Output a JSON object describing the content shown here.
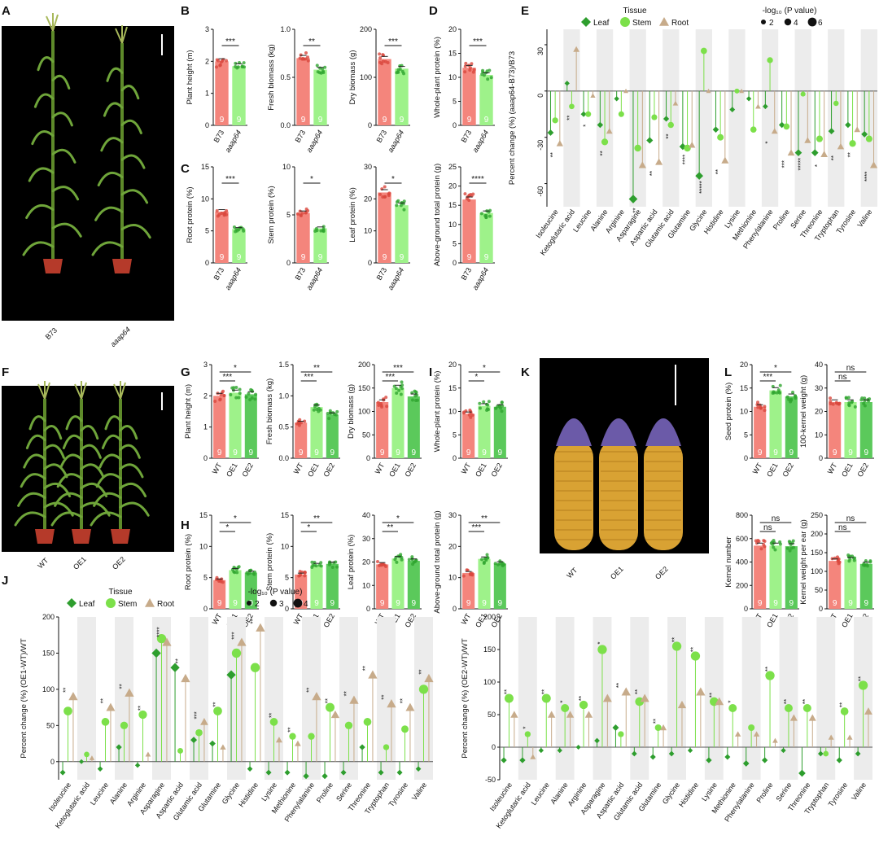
{
  "panel_letters": [
    "A",
    "B",
    "C",
    "D",
    "E",
    "F",
    "G",
    "H",
    "I",
    "J",
    "K",
    "L"
  ],
  "photo_labels": {
    "A": [
      "B73",
      "aaap64"
    ],
    "F": [
      "WT",
      "OE1",
      "OE2"
    ],
    "K": [
      "WT",
      "OE1",
      "OE2"
    ]
  },
  "colors": {
    "red": "#f4857c",
    "light_green": "#9ef28a",
    "green": "#5bc95b",
    "leaf": "#2e9e2e",
    "stem": "#7ce04a",
    "root": "#c7ab8a"
  },
  "legend_E": {
    "tissue_title": "Tissue",
    "items": [
      "Leaf",
      "Stem",
      "Root"
    ],
    "p_title": "-log₁₀ (P value)",
    "p_values": [
      "2",
      "4",
      "6"
    ]
  },
  "legend_J": {
    "tissue_title": "Tissue",
    "items": [
      "Leaf",
      "Stem",
      "Root"
    ],
    "p_title": "-log₁₀ (P value)",
    "p_values": [
      "2",
      "3",
      "4"
    ]
  },
  "chart_data": [
    {
      "panel": "B",
      "type": "bar",
      "ylabel": "Plant height (m)",
      "ylim": [
        0,
        3
      ],
      "ticks": [
        "0",
        "1",
        "2",
        "3"
      ],
      "categories": [
        "B73",
        "aaap64"
      ],
      "values": [
        2.0,
        1.85
      ],
      "n": [
        "9",
        "9"
      ],
      "sig": [
        {
          "from": 0,
          "to": 1,
          "label": "***"
        }
      ]
    },
    {
      "panel": "B",
      "type": "bar",
      "ylabel": "Fresh biomass (kg)",
      "ylim": [
        0,
        1.0
      ],
      "ticks": [
        "0.0",
        "0.5",
        "1.0"
      ],
      "categories": [
        "B73",
        "aaap64"
      ],
      "values": [
        0.7,
        0.58
      ],
      "n": [
        "9",
        "9"
      ],
      "sig": [
        {
          "from": 0,
          "to": 1,
          "label": "**"
        }
      ]
    },
    {
      "panel": "B",
      "type": "bar",
      "ylabel": "Dry biomass (g)",
      "ylim": [
        0,
        200
      ],
      "ticks": [
        "0",
        "100",
        "200"
      ],
      "categories": [
        "B73",
        "aaap64"
      ],
      "values": [
        138,
        118
      ],
      "n": [
        "9",
        "9"
      ],
      "sig": [
        {
          "from": 0,
          "to": 1,
          "label": "***"
        }
      ]
    },
    {
      "panel": "C",
      "type": "bar",
      "ylabel": "Root protein (%)",
      "ylim": [
        0,
        15
      ],
      "ticks": [
        "0",
        "5",
        "10",
        "15"
      ],
      "categories": [
        "B73",
        "aaap64"
      ],
      "values": [
        8.0,
        5.3
      ],
      "n": [
        "9",
        "9"
      ],
      "sig": [
        {
          "from": 0,
          "to": 1,
          "label": "***"
        }
      ]
    },
    {
      "panel": "C",
      "type": "bar",
      "ylabel": "Stem protein (%)",
      "ylim": [
        0,
        10
      ],
      "ticks": [
        "0",
        "5",
        "10"
      ],
      "categories": [
        "B73",
        "aaap64"
      ],
      "values": [
        5.2,
        3.6
      ],
      "n": [
        "9",
        "9"
      ],
      "sig": [
        {
          "from": 0,
          "to": 1,
          "label": "*"
        }
      ]
    },
    {
      "panel": "C",
      "type": "bar",
      "ylabel": "Leaf protein (%)",
      "ylim": [
        0,
        30
      ],
      "ticks": [
        "0",
        "10",
        "20",
        "30"
      ],
      "categories": [
        "B73",
        "aaap64"
      ],
      "values": [
        22,
        18
      ],
      "n": [
        "9",
        "9"
      ],
      "sig": [
        {
          "from": 0,
          "to": 1,
          "label": "*"
        }
      ]
    },
    {
      "panel": "D",
      "type": "bar",
      "ylabel": "Whole-plant protein (%)",
      "ylim": [
        0,
        20
      ],
      "ticks": [
        "0",
        "5",
        "10",
        "15",
        "20"
      ],
      "categories": [
        "B73",
        "aaap64"
      ],
      "values": [
        12,
        10.5
      ],
      "n": [
        "9",
        "9"
      ],
      "sig": [
        {
          "from": 0,
          "to": 1,
          "label": "***"
        }
      ]
    },
    {
      "panel": "D",
      "type": "bar",
      "ylabel": "Above-ground total protein (g)",
      "ylim": [
        0,
        25
      ],
      "ticks": [
        "0",
        "5",
        "10",
        "15",
        "20",
        "25"
      ],
      "categories": [
        "B73",
        "aaap64"
      ],
      "values": [
        16.5,
        13
      ],
      "n": [
        "9",
        "9"
      ],
      "sig": [
        {
          "from": 0,
          "to": 1,
          "label": "****"
        }
      ]
    },
    {
      "panel": "G",
      "type": "bar",
      "ylabel": "Plant height (m)",
      "ylim": [
        0,
        3
      ],
      "ticks": [
        "0",
        "1",
        "2",
        "3"
      ],
      "categories": [
        "WT",
        "OE1",
        "OE2"
      ],
      "values": [
        2.0,
        2.1,
        2.05
      ],
      "n": [
        "9",
        "9",
        "9"
      ],
      "sig": [
        {
          "from": 0,
          "to": 1,
          "label": "***"
        },
        {
          "from": 0,
          "to": 2,
          "label": "*"
        }
      ]
    },
    {
      "panel": "G",
      "type": "bar",
      "ylabel": "Fresh biomass (kg)",
      "ylim": [
        0,
        1.5
      ],
      "ticks": [
        "0.0",
        "0.5",
        "1.0",
        "1.5"
      ],
      "categories": [
        "WT",
        "OE1",
        "OE2"
      ],
      "values": [
        0.57,
        0.82,
        0.7
      ],
      "n": [
        "9",
        "9",
        "9"
      ],
      "sig": [
        {
          "from": 0,
          "to": 1,
          "label": "***"
        },
        {
          "from": 0,
          "to": 2,
          "label": "**"
        }
      ]
    },
    {
      "panel": "G",
      "type": "bar",
      "ylabel": "Dry biomass (g)",
      "ylim": [
        0,
        200
      ],
      "ticks": [
        "0",
        "50",
        "100",
        "150",
        "200"
      ],
      "categories": [
        "WT",
        "OE1",
        "OE2"
      ],
      "values": [
        120,
        150,
        132
      ],
      "n": [
        "9",
        "9",
        "9"
      ],
      "sig": [
        {
          "from": 0,
          "to": 1,
          "label": "***"
        },
        {
          "from": 0,
          "to": 2,
          "label": "***"
        }
      ]
    },
    {
      "panel": "H",
      "type": "bar",
      "ylabel": "Root protein (%)",
      "ylim": [
        0,
        15
      ],
      "ticks": [
        "0",
        "5",
        "10",
        "15"
      ],
      "categories": [
        "WT",
        "OE1",
        "OE2"
      ],
      "values": [
        4.6,
        6.2,
        5.8
      ],
      "n": [
        "9",
        "9",
        "9"
      ],
      "sig": [
        {
          "from": 0,
          "to": 1,
          "label": "*"
        },
        {
          "from": 0,
          "to": 2,
          "label": "*"
        }
      ]
    },
    {
      "panel": "H",
      "type": "bar",
      "ylabel": "Stem protein (%)",
      "ylim": [
        0,
        15
      ],
      "ticks": [
        "0",
        "5",
        "10",
        "15"
      ],
      "categories": [
        "WT",
        "OE1",
        "OE2"
      ],
      "values": [
        5.5,
        7.0,
        7.2
      ],
      "n": [
        "9",
        "9",
        "9"
      ],
      "sig": [
        {
          "from": 0,
          "to": 1,
          "label": "*"
        },
        {
          "from": 0,
          "to": 2,
          "label": "**"
        }
      ]
    },
    {
      "panel": "H",
      "type": "bar",
      "ylabel": "Leaf protein (%)",
      "ylim": [
        0,
        40
      ],
      "ticks": [
        "0",
        "10",
        "20",
        "30",
        "40"
      ],
      "categories": [
        "WT",
        "OE1",
        "OE2"
      ],
      "values": [
        19,
        21.5,
        20.5
      ],
      "n": [
        "9",
        "9",
        "9"
      ],
      "sig": [
        {
          "from": 0,
          "to": 1,
          "label": "**"
        },
        {
          "from": 0,
          "to": 2,
          "label": "*"
        }
      ]
    },
    {
      "panel": "I",
      "type": "bar",
      "ylabel": "Whole-plant protein (%)",
      "ylim": [
        0,
        20
      ],
      "ticks": [
        "0",
        "5",
        "10",
        "15",
        "20"
      ],
      "categories": [
        "WT",
        "OE1",
        "OE2"
      ],
      "values": [
        9.5,
        11.2,
        11
      ],
      "n": [
        "9",
        "9",
        "9"
      ],
      "sig": [
        {
          "from": 0,
          "to": 1,
          "label": "*"
        },
        {
          "from": 0,
          "to": 2,
          "label": "*"
        }
      ]
    },
    {
      "panel": "I",
      "type": "bar",
      "ylabel": "Above-ground total protein (g)",
      "ylim": [
        0,
        30
      ],
      "ticks": [
        "0",
        "10",
        "20",
        "30"
      ],
      "categories": [
        "WT",
        "OE1",
        "OE2"
      ],
      "values": [
        11.5,
        16,
        14.5
      ],
      "n": [
        "9",
        "9",
        "9"
      ],
      "sig": [
        {
          "from": 0,
          "to": 1,
          "label": "***"
        },
        {
          "from": 0,
          "to": 2,
          "label": "**"
        }
      ]
    },
    {
      "panel": "L",
      "type": "bar",
      "ylabel": "Seed protein (%)",
      "ylim": [
        0,
        20
      ],
      "ticks": [
        "0",
        "5",
        "10",
        "15",
        "20"
      ],
      "categories": [
        "WT",
        "OE1",
        "OE2"
      ],
      "values": [
        11,
        14.5,
        13.2
      ],
      "n": [
        "9",
        "9",
        "9"
      ],
      "sig": [
        {
          "from": 0,
          "to": 1,
          "label": "***"
        },
        {
          "from": 0,
          "to": 2,
          "label": "*"
        }
      ]
    },
    {
      "panel": "L",
      "type": "bar",
      "ylabel": "100-kernel weight (g)",
      "ylim": [
        0,
        40
      ],
      "ticks": [
        "0",
        "10",
        "20",
        "30",
        "40"
      ],
      "categories": [
        "WT",
        "OE1",
        "OE2"
      ],
      "values": [
        24,
        24,
        24
      ],
      "n": [
        "9",
        "9",
        "9"
      ],
      "sig": [
        {
          "from": 0,
          "to": 1,
          "label": "ns"
        },
        {
          "from": 0,
          "to": 2,
          "label": "ns"
        }
      ]
    },
    {
      "panel": "L",
      "type": "bar",
      "ylabel": "Kernel number",
      "ylim": [
        0,
        800
      ],
      "ticks": [
        "0",
        "200",
        "400",
        "600",
        "800"
      ],
      "categories": [
        "WT",
        "OE1",
        "OE2"
      ],
      "values": [
        540,
        540,
        535
      ],
      "n": [
        "9",
        "9",
        "9"
      ],
      "sig": [
        {
          "from": 0,
          "to": 1,
          "label": "ns"
        },
        {
          "from": 0,
          "to": 2,
          "label": "ns"
        }
      ]
    },
    {
      "panel": "L",
      "type": "bar",
      "ylabel": "Kernel weight per ear (g)",
      "ylim": [
        0,
        250
      ],
      "ticks": [
        "0",
        "50",
        "100",
        "150",
        "200",
        "250"
      ],
      "categories": [
        "WT",
        "OE1",
        "OE2"
      ],
      "values": [
        128,
        132,
        120
      ],
      "n": [
        "9",
        "9",
        "9"
      ],
      "sig": [
        {
          "from": 0,
          "to": 1,
          "label": "ns"
        },
        {
          "from": 0,
          "to": 2,
          "label": "ns"
        }
      ]
    },
    {
      "panel": "E",
      "type": "scatter",
      "ylabel": "Percent change (%) (aaap64-B73)/B73",
      "ylim": [
        -75,
        40
      ],
      "ticks": [
        "30",
        "0",
        "-30",
        "-60"
      ],
      "categories": [
        "Isoleucine",
        "Ketoglutaric acid",
        "Leucine",
        "Alanine",
        "Arginine",
        "Asparagine",
        "Aspartic acid",
        "Glutamic acid",
        "Glutamine",
        "Glycine",
        "Histidine",
        "Lysine",
        "Methionine",
        "Phenylalanine",
        "Proline",
        "Serine",
        "Threonine",
        "Tryptophan",
        "Tyrosine",
        "Valine"
      ],
      "series": [
        {
          "name": "Leaf",
          "values": [
            -27,
            5,
            -15,
            -22,
            -5,
            -70,
            -32,
            -18,
            -36,
            -55,
            -25,
            -12,
            -5,
            -10,
            -22,
            -40,
            -40,
            -26,
            -22,
            -28
          ]
        },
        {
          "name": "Stem",
          "values": [
            -19,
            -10,
            -15,
            -33,
            -15,
            -37,
            -17,
            -22,
            -37,
            26,
            -30,
            0,
            -25,
            20,
            -23,
            -2,
            -31,
            -8,
            -34,
            -31
          ]
        },
        {
          "name": "Root",
          "values": [
            -34,
            27,
            -3,
            -26,
            0,
            -48,
            -46,
            -8,
            -35,
            0,
            -45,
            0,
            -10,
            -26,
            -40,
            -32,
            -41,
            -36,
            -25,
            -48
          ]
        }
      ],
      "sig_labels": [
        "**",
        "**",
        "*",
        "**",
        "",
        "**",
        "**",
        "**",
        "****",
        "*****",
        "**",
        "",
        "",
        "*",
        "***",
        "*****",
        "*",
        "**",
        "**",
        "****"
      ]
    },
    {
      "panel": "J",
      "type": "scatter",
      "ylabel": "Percent change (%) (OE1-WT)/WT",
      "ylim": [
        -25,
        200
      ],
      "ticks": [
        "200",
        "150",
        "100",
        "50",
        "0",
        "-50"
      ],
      "categories": [
        "Isoleucine",
        "Ketoglutaric acid",
        "Leucine",
        "Alanine",
        "Arginine",
        "Asparagine",
        "Aspartic acid",
        "Glutamic acid",
        "Glutamine",
        "Glycine",
        "Histidine",
        "Lysine",
        "Methionine",
        "Phenylalanine",
        "Proline",
        "Serine",
        "Threonine",
        "Tryptophan",
        "Tyrosine",
        "Valine"
      ],
      "series": [
        {
          "name": "Leaf",
          "values": [
            -15,
            0,
            -10,
            20,
            -5,
            150,
            130,
            30,
            25,
            120,
            -10,
            -15,
            -15,
            -20,
            -20,
            -15,
            20,
            -15,
            -15,
            -10
          ]
        },
        {
          "name": "Stem",
          "values": [
            70,
            10,
            55,
            50,
            65,
            170,
            15,
            40,
            70,
            150,
            130,
            55,
            35,
            35,
            75,
            50,
            55,
            20,
            45,
            100
          ]
        },
        {
          "name": "Root",
          "values": [
            90,
            5,
            75,
            95,
            10,
            165,
            115,
            55,
            20,
            165,
            185,
            30,
            25,
            90,
            65,
            85,
            120,
            80,
            75,
            115
          ]
        }
      ],
      "sig_labels": [
        "**",
        "",
        "**",
        "**",
        "**",
        "****",
        "**",
        "***",
        "**",
        "***",
        "**",
        "**",
        "**",
        "**",
        "**",
        "**",
        "**",
        "**",
        "**",
        "**"
      ]
    },
    {
      "panel": "J",
      "type": "scatter",
      "ylabel": "Percent change (%) (OE2-WT)/WT",
      "ylim": [
        -50,
        200
      ],
      "ticks": [
        "200",
        "150",
        "100",
        "50",
        "0",
        "-50"
      ],
      "categories": [
        "Isoleucine",
        "Ketoglutaric acid",
        "Leucine",
        "Alanine",
        "Arginine",
        "Asparagine",
        "Aspartic acid",
        "Glutamic acid",
        "Glutamine",
        "Glycine",
        "Histidine",
        "Lysine",
        "Methionine",
        "Phenylalanine",
        "Proline",
        "Serine",
        "Threonine",
        "Tryptophan",
        "Tyrosine",
        "Valine"
      ],
      "series": [
        {
          "name": "Leaf",
          "values": [
            -20,
            -20,
            -5,
            -5,
            0,
            10,
            30,
            -10,
            -15,
            -10,
            -5,
            -20,
            -15,
            -25,
            -20,
            -5,
            -40,
            -10,
            -20,
            -10
          ]
        },
        {
          "name": "Stem",
          "values": [
            75,
            20,
            75,
            60,
            65,
            150,
            20,
            70,
            30,
            155,
            140,
            70,
            60,
            30,
            110,
            60,
            60,
            -10,
            55,
            95
          ]
        },
        {
          "name": "Root",
          "values": [
            50,
            -15,
            50,
            50,
            50,
            75,
            85,
            75,
            30,
            65,
            85,
            70,
            20,
            20,
            10,
            45,
            45,
            15,
            15,
            55
          ]
        }
      ],
      "sig_labels": [
        "**",
        "*",
        "**",
        "*",
        "**",
        "*",
        "**",
        "**",
        "**",
        "**",
        "**",
        "**",
        "*",
        "",
        "**",
        "**",
        "**",
        "",
        "**",
        "**"
      ]
    }
  ]
}
